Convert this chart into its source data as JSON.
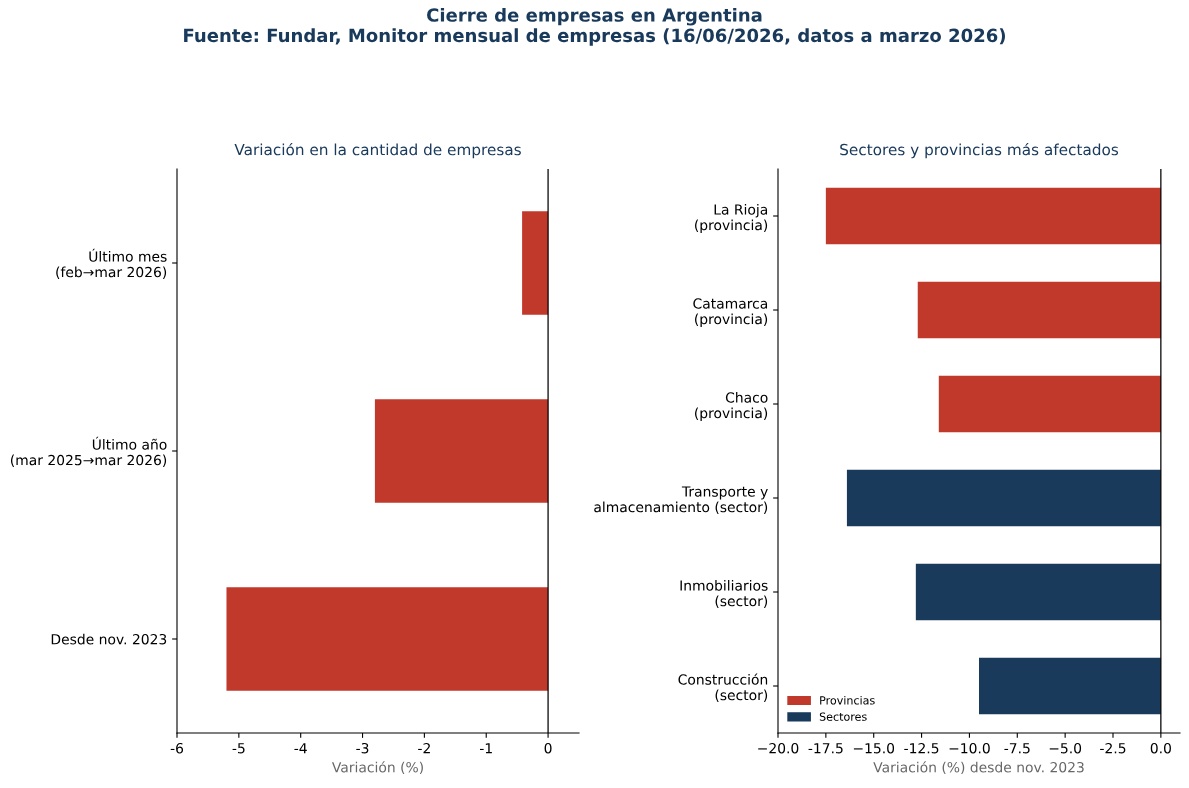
{
  "chart_data": [
    {
      "type": "bar",
      "orientation": "horizontal",
      "title": "Variación en la cantidad de empresas",
      "xlabel": "Variación (%)",
      "categories": [
        "Último mes\n(feb→mar 2026)",
        "Último año\n(mar 2025→mar 2026)",
        "Desde nov. 2023"
      ],
      "series": [
        {
          "color": "#c0392b",
          "values": [
            -0.42,
            -2.8,
            -5.2
          ]
        }
      ],
      "xlim": [
        -6,
        0.5
      ],
      "xticks": [
        -6,
        -5,
        -4,
        -3,
        -2,
        -1,
        0
      ],
      "ref_lines": [
        {
          "axis": "x",
          "value": 0,
          "color": "#000000"
        }
      ],
      "grid": false,
      "legend": false,
      "annotations": [
        "Cierre de empresas en Argentina",
        "Fuente: Fundar, Monitor mensual de empresas (16/06/2026, datos a marzo 2026)"
      ]
    },
    {
      "type": "bar",
      "orientation": "horizontal",
      "title": "Sectores y provincias más afectados",
      "xlabel": "Variación (%) desde nov. 2023",
      "categories": [
        "La Rioja\n(provincia)",
        "Catamarca\n(provincia)",
        "Chaco\n(provincia)",
        "Transporte y\nalmacenamiento (sector)",
        "Inmobiliarios\n(sector)",
        "Construcción\n(sector)"
      ],
      "series": [
        {
          "name": "Provincias",
          "color": "#c0392b",
          "values": [
            -17.5,
            -12.7,
            -11.6,
            null,
            null,
            null
          ]
        },
        {
          "name": "Sectores",
          "color": "#1a3a5c",
          "values": [
            null,
            null,
            null,
            -16.4,
            -12.8,
            -9.5
          ]
        }
      ],
      "xlim": [
        -20,
        1
      ],
      "xticks": [
        {
          "value": -20,
          "label": "−20.0"
        },
        -17.5,
        {
          "value": -15,
          "label": "−15.0"
        },
        -12.5,
        {
          "value": -10,
          "label": "−10.0"
        },
        -7.5,
        {
          "value": -5,
          "label": "−5.0"
        },
        -2.5,
        {
          "value": 0,
          "label": "0.0"
        }
      ],
      "ref_lines": [
        {
          "axis": "x",
          "value": 0,
          "color": "#000000"
        }
      ],
      "grid": false,
      "legend": "bottom left"
    }
  ]
}
